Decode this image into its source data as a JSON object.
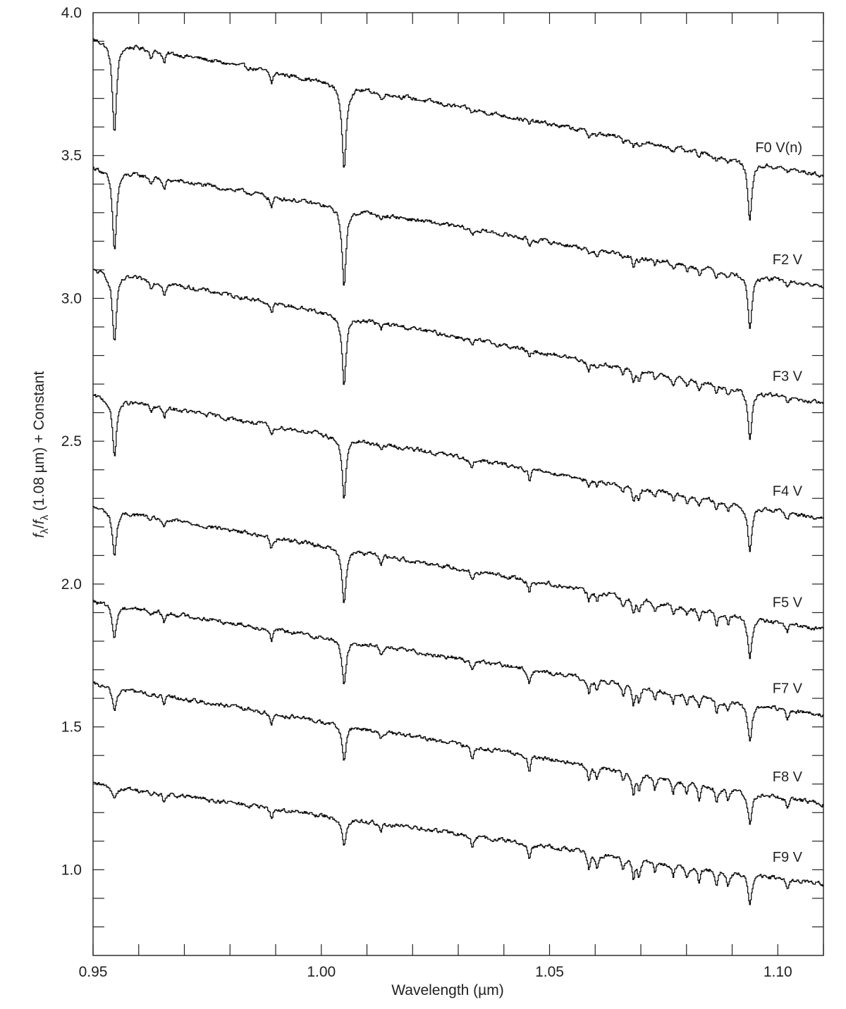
{
  "chart_data": {
    "type": "line",
    "title": "",
    "xlabel": "Wavelength (µm)",
    "ylabel": "",
    "ylabel_parts": {
      "f1": "f",
      "sub1": "λ",
      "slash": "/",
      "f2": "f",
      "sub2": "λ",
      "rest": " (1.08 µm) + Constant"
    },
    "xlim": [
      0.95,
      1.11
    ],
    "ylim": [
      0.7,
      4.0
    ],
    "x_ticks": [
      "0.95",
      "1.00",
      "1.05",
      "1.10"
    ],
    "x_tick_values": [
      0.95,
      1.0,
      1.05,
      1.1
    ],
    "y_ticks": [
      "1.0",
      "1.5",
      "2.0",
      "2.5",
      "3.0",
      "3.5",
      "4.0"
    ],
    "y_tick_values": [
      1.0,
      1.5,
      2.0,
      2.5,
      3.0,
      3.5,
      4.0
    ],
    "grid": false,
    "absorption_lines_um": [
      {
        "x": 0.9546,
        "w": 0.0006,
        "depth": 0.32,
        "fade": 0.12
      },
      {
        "x": 0.9626,
        "w": 0.0004,
        "depth": 0.025,
        "fade": 0.5
      },
      {
        "x": 0.9655,
        "w": 0.0004,
        "depth": 0.04,
        "fade": 0.8
      },
      {
        "x": 0.989,
        "w": 0.0004,
        "depth": 0.04,
        "fade": 0.9
      },
      {
        "x": 1.0049,
        "w": 0.0006,
        "depth": 0.3,
        "fade": 0.3
      },
      {
        "x": 1.013,
        "w": 0.0004,
        "depth": 0.025,
        "fade": 1.0
      },
      {
        "x": 1.033,
        "w": 0.0004,
        "depth": 0.035,
        "fade": 1.0
      },
      {
        "x": 1.0455,
        "w": 0.0004,
        "depth": 0.045,
        "fade": 1.0
      },
      {
        "x": 1.0585,
        "w": 0.0004,
        "depth": 0.045,
        "fade": 1.0
      },
      {
        "x": 1.0603,
        "w": 0.0004,
        "depth": 0.035,
        "fade": 1.0
      },
      {
        "x": 1.066,
        "w": 0.0004,
        "depth": 0.035,
        "fade": 1.0
      },
      {
        "x": 1.0683,
        "w": 0.0004,
        "depth": 0.06,
        "fade": 1.0
      },
      {
        "x": 1.0695,
        "w": 0.0004,
        "depth": 0.05,
        "fade": 1.0
      },
      {
        "x": 1.073,
        "w": 0.0004,
        "depth": 0.035,
        "fade": 1.0
      },
      {
        "x": 1.077,
        "w": 0.0004,
        "depth": 0.035,
        "fade": 1.0
      },
      {
        "x": 1.08,
        "w": 0.0004,
        "depth": 0.035,
        "fade": 1.0
      },
      {
        "x": 1.0827,
        "w": 0.0004,
        "depth": 0.045,
        "fade": 1.0
      },
      {
        "x": 1.0865,
        "w": 0.0004,
        "depth": 0.045,
        "fade": 1.0
      },
      {
        "x": 1.089,
        "w": 0.0004,
        "depth": 0.035,
        "fade": 1.0
      },
      {
        "x": 1.0938,
        "w": 0.0006,
        "depth": 0.2,
        "fade": 0.5
      },
      {
        "x": 1.102,
        "w": 0.0004,
        "depth": 0.03,
        "fade": 1.0
      }
    ],
    "series": [
      {
        "name": "F0 V(n)",
        "start": 3.91,
        "end": 3.43,
        "late_strength": 0.05
      },
      {
        "name": "F2 V",
        "start": 3.46,
        "end": 3.04,
        "late_strength": 0.25
      },
      {
        "name": "F3 V",
        "start": 3.1,
        "end": 2.63,
        "late_strength": 0.4
      },
      {
        "name": "F4 V",
        "start": 2.66,
        "end": 2.23,
        "late_strength": 0.5
      },
      {
        "name": "F5 V",
        "start": 2.27,
        "end": 1.84,
        "late_strength": 0.6
      },
      {
        "name": "F7 V",
        "start": 1.94,
        "end": 1.54,
        "late_strength": 0.75
      },
      {
        "name": "F8 V",
        "start": 1.65,
        "end": 1.23,
        "late_strength": 0.9
      },
      {
        "name": "F9 V",
        "start": 1.3,
        "end": 0.95,
        "late_strength": 1.0
      }
    ]
  }
}
